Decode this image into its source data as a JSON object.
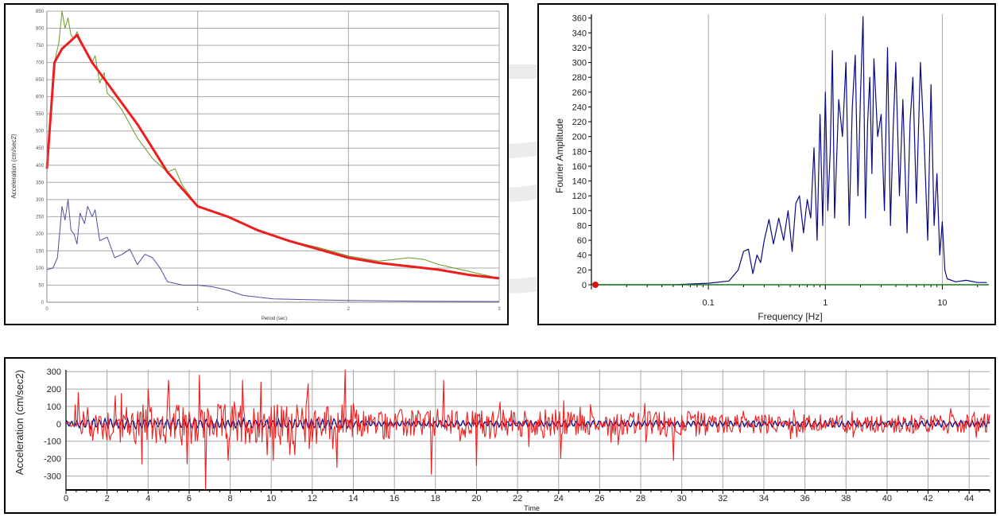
{
  "colors": {
    "grid": "#a8a8a8",
    "red": "#ee1e1e",
    "green": "#6a9a2a",
    "blue": "#5050a0",
    "navy": "#0a0a80",
    "axis": "#000000",
    "watermark": "#ececec"
  },
  "chart_data": [
    {
      "type": "line",
      "xlabel": "Period (sec)",
      "ylabel": "Acceleration (cm/sec2)",
      "xlim": [
        0,
        3
      ],
      "ylim": [
        0,
        850
      ],
      "xticks": [
        "0",
        "1",
        "2",
        "3"
      ],
      "yticks": [
        "0",
        "50",
        "100",
        "150",
        "200",
        "250",
        "300",
        "350",
        "400",
        "450",
        "500",
        "550",
        "600",
        "650",
        "700",
        "750",
        "800",
        "850"
      ],
      "grid": true,
      "series": [
        {
          "color": "green",
          "x": [
            0,
            0.05,
            0.08,
            0.1,
            0.12,
            0.14,
            0.16,
            0.18,
            0.2,
            0.25,
            0.3,
            0.32,
            0.35,
            0.38,
            0.4,
            0.45,
            0.5,
            0.55,
            0.6,
            0.7,
            0.8,
            0.85,
            0.9,
            1.0,
            1.2,
            1.4,
            1.6,
            1.8,
            2.0,
            2.2,
            2.3,
            2.4,
            2.5,
            2.6,
            2.8,
            3.0
          ],
          "y": [
            380,
            700,
            760,
            850,
            800,
            830,
            780,
            770,
            790,
            740,
            700,
            720,
            640,
            670,
            610,
            590,
            560,
            520,
            480,
            420,
            380,
            390,
            340,
            280,
            250,
            210,
            180,
            160,
            135,
            120,
            125,
            130,
            125,
            110,
            90,
            70
          ]
        },
        {
          "color": "red",
          "x": [
            0,
            0.05,
            0.1,
            0.15,
            0.2,
            0.25,
            0.3,
            0.4,
            0.5,
            0.6,
            0.7,
            0.8,
            0.9,
            1.0,
            1.2,
            1.4,
            1.6,
            1.8,
            2.0,
            2.2,
            2.4,
            2.6,
            2.8,
            3.0
          ],
          "y": [
            390,
            700,
            740,
            760,
            780,
            740,
            700,
            640,
            580,
            520,
            450,
            380,
            330,
            280,
            250,
            210,
            180,
            155,
            130,
            115,
            105,
            95,
            80,
            70
          ]
        },
        {
          "color": "blue",
          "x": [
            0,
            0.04,
            0.07,
            0.1,
            0.12,
            0.14,
            0.16,
            0.18,
            0.2,
            0.22,
            0.25,
            0.27,
            0.3,
            0.32,
            0.35,
            0.4,
            0.45,
            0.5,
            0.55,
            0.6,
            0.65,
            0.7,
            0.75,
            0.8,
            0.85,
            0.9,
            1.0,
            1.1,
            1.2,
            1.3,
            1.5,
            1.7,
            2.0,
            2.5,
            3.0
          ],
          "y": [
            95,
            100,
            130,
            280,
            240,
            300,
            210,
            200,
            170,
            260,
            230,
            280,
            250,
            270,
            180,
            190,
            130,
            140,
            155,
            110,
            140,
            130,
            100,
            60,
            55,
            50,
            50,
            45,
            35,
            20,
            10,
            8,
            5,
            3,
            2
          ]
        }
      ]
    },
    {
      "type": "line",
      "xlabel": "Frequency [Hz]",
      "ylabel": "Fourier Amplitude",
      "xscale": "log",
      "xlim": [
        0.01,
        25
      ],
      "ylim": [
        0,
        365
      ],
      "xticks": [
        "0.1",
        "1",
        "10"
      ],
      "yticks": [
        "0",
        "20",
        "40",
        "60",
        "80",
        "100",
        "120",
        "140",
        "160",
        "180",
        "200",
        "220",
        "240",
        "260",
        "280",
        "300",
        "320",
        "340",
        "360"
      ],
      "grid": true,
      "series": [
        {
          "color": "navy",
          "x": [
            0.01,
            0.05,
            0.1,
            0.15,
            0.18,
            0.2,
            0.22,
            0.24,
            0.26,
            0.28,
            0.3,
            0.33,
            0.36,
            0.4,
            0.44,
            0.48,
            0.52,
            0.56,
            0.6,
            0.65,
            0.7,
            0.75,
            0.8,
            0.85,
            0.9,
            0.95,
            1.0,
            1.05,
            1.1,
            1.15,
            1.2,
            1.3,
            1.4,
            1.5,
            1.6,
            1.7,
            1.8,
            1.9,
            2.0,
            2.1,
            2.2,
            2.3,
            2.4,
            2.5,
            2.6,
            2.8,
            3.0,
            3.2,
            3.4,
            3.6,
            3.8,
            4.0,
            4.3,
            4.6,
            5.0,
            5.3,
            5.6,
            6.0,
            6.5,
            7.0,
            7.5,
            8.0,
            8.5,
            9.0,
            9.5,
            10.0,
            10.5,
            11,
            13,
            16,
            20,
            24
          ],
          "y": [
            0,
            0,
            2,
            5,
            20,
            45,
            48,
            15,
            40,
            30,
            60,
            88,
            55,
            90,
            60,
            100,
            45,
            110,
            120,
            70,
            115,
            90,
            185,
            60,
            230,
            80,
            260,
            100,
            180,
            316,
            90,
            250,
            200,
            300,
            80,
            240,
            310,
            120,
            260,
            362,
            90,
            220,
            280,
            150,
            305,
            200,
            230,
            100,
            320,
            80,
            210,
            300,
            120,
            250,
            70,
            220,
            280,
            110,
            300,
            190,
            60,
            270,
            80,
            150,
            40,
            85,
            20,
            8,
            4,
            6,
            3,
            3
          ]
        }
      ]
    },
    {
      "type": "line",
      "xlabel": "Time",
      "ylabel": "Acceleration (cm/sec2)",
      "xlim": [
        0,
        45
      ],
      "ylim": [
        -380,
        310
      ],
      "xticks": [
        "0",
        "2",
        "4",
        "6",
        "8",
        "10",
        "12",
        "14",
        "16",
        "18",
        "20",
        "22",
        "24",
        "26",
        "28",
        "30",
        "32",
        "34",
        "36",
        "38",
        "40",
        "42",
        "44"
      ],
      "yticks": [
        "300",
        "200",
        "100",
        "0",
        "-100",
        "-200",
        "-300"
      ],
      "grid": true,
      "series": [
        {
          "color": "red",
          "peaks": [
            {
              "t": 0.6,
              "v": 180
            },
            {
              "t": 2.4,
              "v": 160
            },
            {
              "t": 3.7,
              "v": -230
            },
            {
              "t": 4.0,
              "v": 200
            },
            {
              "t": 5.0,
              "v": 250
            },
            {
              "t": 5.9,
              "v": -230
            },
            {
              "t": 6.5,
              "v": 280
            },
            {
              "t": 6.8,
              "v": -380
            },
            {
              "t": 7.9,
              "v": -210
            },
            {
              "t": 8.6,
              "v": 250
            },
            {
              "t": 9.5,
              "v": 240
            },
            {
              "t": 10.1,
              "v": -210
            },
            {
              "t": 11.8,
              "v": 230
            },
            {
              "t": 13.2,
              "v": -250
            },
            {
              "t": 13.6,
              "v": 310
            },
            {
              "t": 17.8,
              "v": -290
            },
            {
              "t": 18.4,
              "v": 250
            },
            {
              "t": 20.0,
              "v": -240
            },
            {
              "t": 24.1,
              "v": -200
            },
            {
              "t": 29.6,
              "v": -210
            }
          ]
        },
        {
          "color": "navy",
          "peaks": []
        }
      ]
    }
  ]
}
